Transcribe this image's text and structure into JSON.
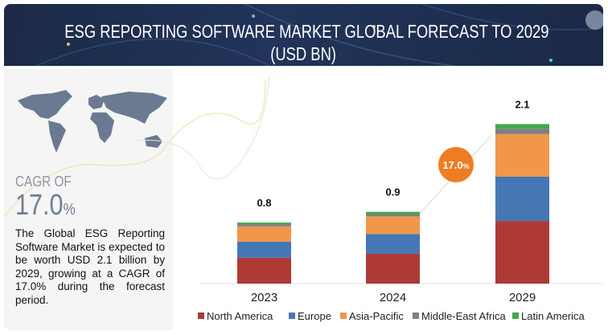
{
  "header": {
    "title_line1": "ESG REPORTING SOFTWARE MARKET GLOBAL FORECAST TO 2029",
    "title_line2": "(USD BN)",
    "lens_icon": "lens-scan-icon"
  },
  "left_panel": {
    "cagr_label": "CAGR OF",
    "cagr_value": "17.0",
    "cagr_unit": "%",
    "description": "The Global ESG Reporting Software Market is expected to be worth USD 2.1 billion by 2029, growing at a CAGR of 17.0% during the forecast period.",
    "map_icon": "world-map-icon"
  },
  "chart_data": {
    "type": "bar",
    "stacked": true,
    "title": "ESG REPORTING SOFTWARE MARKET GLOBAL FORECAST TO 2029 (USD BN)",
    "categories": [
      "2023",
      "2024",
      "2029"
    ],
    "totals_labels": [
      "0.8",
      "0.9",
      "2.1"
    ],
    "series": [
      {
        "name": "North America",
        "color": "#ad3a35",
        "values": [
          0.34,
          0.39,
          0.82
        ]
      },
      {
        "name": "Europe",
        "color": "#4577b4",
        "values": [
          0.21,
          0.26,
          0.58
        ]
      },
      {
        "name": "Asia-Pacific",
        "color": "#f0974a",
        "values": [
          0.2,
          0.23,
          0.56
        ]
      },
      {
        "name": "Middle-East Africa",
        "color": "#7f7f7f",
        "values": [
          0.03,
          0.03,
          0.07
        ]
      },
      {
        "name": "Latin America",
        "color": "#3daa4b",
        "values": [
          0.02,
          0.03,
          0.06
        ]
      }
    ],
    "ylim": [
      0,
      2.1
    ],
    "grid": false,
    "legend_position": "bottom",
    "cagr_badge": {
      "text": "17.0",
      "unit": "%",
      "color": "#ef7d22"
    }
  }
}
